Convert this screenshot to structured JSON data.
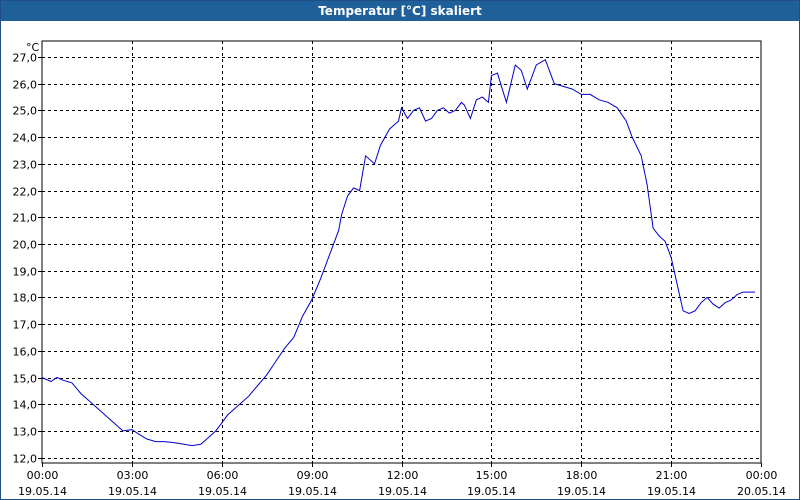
{
  "window": {
    "title": "Temperatur [°C] skaliert"
  },
  "colors": {
    "titlebar": "#1f5f9a",
    "line": "#0000cc",
    "grid": "#000000",
    "background": "#ffffff"
  },
  "chart_data": {
    "type": "line",
    "title": "Temperatur [°C] skaliert",
    "ylabel": "°C",
    "xlabel": "",
    "ylim": [
      11.8,
      27.6
    ],
    "y_ticks": [
      12,
      13,
      14,
      15,
      16,
      17,
      18,
      19,
      20,
      21,
      22,
      23,
      24,
      25,
      26,
      27
    ],
    "y_tick_labels": [
      "12,0",
      "13,0",
      "14,0",
      "15,0",
      "16,0",
      "17,0",
      "18,0",
      "19,0",
      "20,0",
      "21,0",
      "22,0",
      "23,0",
      "24,0",
      "25,0",
      "26,0",
      "27,0"
    ],
    "x_ticks": [
      0,
      3,
      6,
      9,
      12,
      15,
      18,
      21,
      24
    ],
    "x_tick_labels": [
      [
        "00:00",
        "19.05.14"
      ],
      [
        "03:00",
        "19.05.14"
      ],
      [
        "06:00",
        "19.05.14"
      ],
      [
        "09:00",
        "19.05.14"
      ],
      [
        "12:00",
        "19.05.14"
      ],
      [
        "15:00",
        "19.05.14"
      ],
      [
        "18:00",
        "19.05.14"
      ],
      [
        "21:00",
        "19.05.14"
      ],
      [
        "00:00",
        "20.05.14"
      ]
    ],
    "xlim": [
      0,
      24
    ],
    "grid": true,
    "series": [
      {
        "x": [
          0,
          0.3,
          0.5,
          0.7,
          1.0,
          1.3,
          1.5,
          1.8,
          2.1,
          2.4,
          2.7,
          3.0,
          3.2,
          3.5,
          3.8,
          4.1,
          4.5,
          5.0,
          5.3,
          5.5,
          5.8,
          6.0,
          6.2,
          6.5,
          6.9,
          7.2,
          7.5,
          7.8,
          8.1,
          8.4,
          8.7,
          9.0,
          9.3,
          9.6,
          9.9,
          10.0,
          10.2,
          10.4,
          10.6,
          10.8,
          11.1,
          11.3,
          11.6,
          11.9,
          12.0,
          12.2,
          12.4,
          12.6,
          12.8,
          13.0,
          13.2,
          13.4,
          13.6,
          13.8,
          14.0,
          14.1,
          14.3,
          14.5,
          14.7,
          14.9,
          15.0,
          15.2,
          15.5,
          15.8,
          16.0,
          16.2,
          16.5,
          16.8,
          17.1,
          17.4,
          17.7,
          18.0,
          18.3,
          18.6,
          18.9,
          19.2,
          19.5,
          19.7,
          20.0,
          20.2,
          20.4,
          20.6,
          20.8,
          21.0,
          21.2,
          21.4,
          21.6,
          21.8,
          22.0,
          22.2,
          22.4,
          22.6,
          22.8,
          23.0,
          23.2,
          23.4,
          23.6,
          23.8
        ],
        "y": [
          15.0,
          14.85,
          15.0,
          14.9,
          14.8,
          14.4,
          14.2,
          13.9,
          13.6,
          13.3,
          13.0,
          13.05,
          12.9,
          12.7,
          12.6,
          12.6,
          12.55,
          12.45,
          12.5,
          12.7,
          13.0,
          13.3,
          13.6,
          13.9,
          14.3,
          14.7,
          15.1,
          15.6,
          16.1,
          16.5,
          17.3,
          17.9,
          18.7,
          19.6,
          20.5,
          21.1,
          21.8,
          22.1,
          22.0,
          23.3,
          23.0,
          23.7,
          24.3,
          24.6,
          25.1,
          24.7,
          25.0,
          25.1,
          24.6,
          24.7,
          25.0,
          25.1,
          24.9,
          25.0,
          25.3,
          25.2,
          24.7,
          25.4,
          25.5,
          25.3,
          26.3,
          26.4,
          25.3,
          26.7,
          26.5,
          25.8,
          26.7,
          26.9,
          26.0,
          25.9,
          25.8,
          25.6,
          25.6,
          25.4,
          25.3,
          25.1,
          24.6,
          24.0,
          23.3,
          22.2,
          20.6,
          20.3,
          20.1,
          19.5,
          18.5,
          17.5,
          17.4,
          17.5,
          17.8,
          18.0,
          17.75,
          17.6,
          17.8,
          17.9,
          18.1,
          18.2,
          18.2,
          18.2
        ]
      }
    ]
  }
}
